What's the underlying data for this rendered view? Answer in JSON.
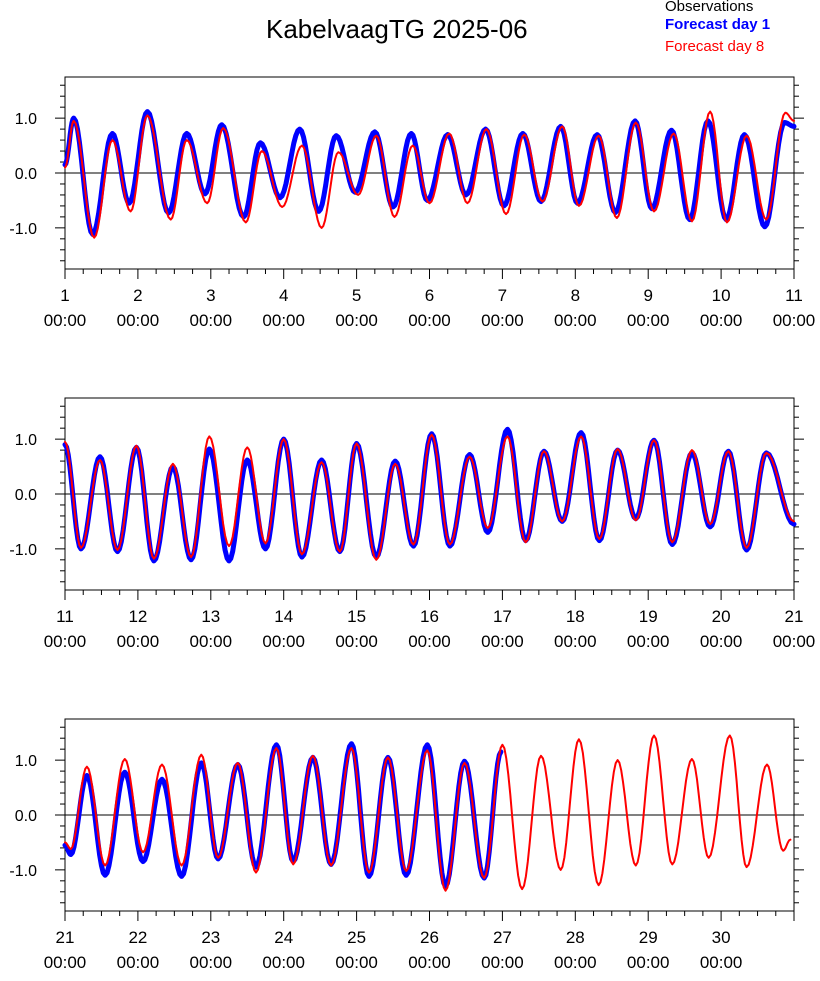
{
  "chart_data": {
    "type": "line",
    "title": "KabelvaagTG 2025-06",
    "legend": {
      "placement": "top-right",
      "entries": [
        {
          "name": "Observations",
          "color": "#000000"
        },
        {
          "name": "Forecast day 1",
          "color": "#0000ff"
        },
        {
          "name": "Forecast day 8",
          "color": "#ff0000"
        }
      ]
    },
    "y_tick_labels": [
      "1.0",
      "0.0",
      "-1.0"
    ],
    "ylim": [
      -1.75,
      1.75
    ],
    "grid": false,
    "panels": [
      {
        "x_start_day": 1,
        "x_end_day": 11,
        "x_tick_days": [
          "1",
          "2",
          "3",
          "4",
          "5",
          "6",
          "7",
          "8",
          "9",
          "10",
          "11"
        ],
        "x_tick_time": "00:00",
        "forecast_day1_extrema": [
          [
            0.0,
            0.15
          ],
          [
            0.12,
            1.0
          ],
          [
            0.38,
            -1.12
          ],
          [
            0.65,
            0.72
          ],
          [
            0.88,
            -0.55
          ],
          [
            1.13,
            1.12
          ],
          [
            1.42,
            -0.73
          ],
          [
            1.67,
            0.72
          ],
          [
            1.92,
            -0.38
          ],
          [
            2.15,
            0.88
          ],
          [
            2.45,
            -0.8
          ],
          [
            2.68,
            0.55
          ],
          [
            2.95,
            -0.45
          ],
          [
            3.22,
            0.8
          ],
          [
            3.48,
            -0.7
          ],
          [
            3.72,
            0.68
          ],
          [
            3.98,
            -0.35
          ],
          [
            4.25,
            0.75
          ],
          [
            4.5,
            -0.62
          ],
          [
            4.75,
            0.72
          ],
          [
            4.97,
            -0.5
          ],
          [
            5.25,
            0.7
          ],
          [
            5.5,
            -0.4
          ],
          [
            5.77,
            0.8
          ],
          [
            6.02,
            -0.6
          ],
          [
            6.28,
            0.72
          ],
          [
            6.53,
            -0.52
          ],
          [
            6.8,
            0.85
          ],
          [
            7.03,
            -0.55
          ],
          [
            7.3,
            0.7
          ],
          [
            7.55,
            -0.72
          ],
          [
            7.82,
            0.95
          ],
          [
            8.05,
            -0.65
          ],
          [
            8.32,
            0.78
          ],
          [
            8.57,
            -0.85
          ],
          [
            8.82,
            0.95
          ],
          [
            9.07,
            -0.85
          ],
          [
            9.32,
            0.7
          ],
          [
            9.6,
            -0.98
          ],
          [
            9.87,
            0.92
          ],
          [
            10.0,
            0.85
          ]
        ],
        "forecast_day8_extrema": [
          [
            0.0,
            0.1
          ],
          [
            0.12,
            0.95
          ],
          [
            0.4,
            -1.18
          ],
          [
            0.65,
            0.6
          ],
          [
            0.9,
            -0.7
          ],
          [
            1.13,
            1.05
          ],
          [
            1.45,
            -0.85
          ],
          [
            1.67,
            0.6
          ],
          [
            1.95,
            -0.55
          ],
          [
            2.17,
            0.82
          ],
          [
            2.48,
            -0.9
          ],
          [
            2.7,
            0.4
          ],
          [
            2.98,
            -0.62
          ],
          [
            3.25,
            0.5
          ],
          [
            3.52,
            -1.0
          ],
          [
            3.75,
            0.38
          ],
          [
            4.02,
            -0.4
          ],
          [
            4.27,
            0.68
          ],
          [
            4.52,
            -0.8
          ],
          [
            4.77,
            0.5
          ],
          [
            5.0,
            -0.55
          ],
          [
            5.27,
            0.72
          ],
          [
            5.52,
            -0.55
          ],
          [
            5.78,
            0.8
          ],
          [
            6.05,
            -0.75
          ],
          [
            6.3,
            0.7
          ],
          [
            6.55,
            -0.52
          ],
          [
            6.82,
            0.85
          ],
          [
            7.05,
            -0.6
          ],
          [
            7.32,
            0.68
          ],
          [
            7.57,
            -0.82
          ],
          [
            7.83,
            0.92
          ],
          [
            8.08,
            -0.7
          ],
          [
            8.35,
            0.72
          ],
          [
            8.6,
            -0.88
          ],
          [
            8.85,
            1.12
          ],
          [
            9.08,
            -0.9
          ],
          [
            9.35,
            0.68
          ],
          [
            9.62,
            -0.85
          ],
          [
            9.88,
            1.1
          ],
          [
            10.0,
            0.95
          ]
        ]
      },
      {
        "x_start_day": 11,
        "x_end_day": 21,
        "x_tick_days": [
          "11",
          "12",
          "13",
          "14",
          "15",
          "16",
          "17",
          "18",
          "19",
          "20",
          "21"
        ],
        "x_tick_time": "00:00",
        "forecast_day1_extrema": [
          [
            0.0,
            0.9
          ],
          [
            0.22,
            -1.0
          ],
          [
            0.48,
            0.68
          ],
          [
            0.72,
            -1.05
          ],
          [
            0.98,
            0.85
          ],
          [
            1.22,
            -1.22
          ],
          [
            1.48,
            0.5
          ],
          [
            1.73,
            -1.2
          ],
          [
            1.98,
            0.82
          ],
          [
            2.25,
            -1.22
          ],
          [
            2.5,
            0.62
          ],
          [
            2.75,
            -1.0
          ],
          [
            3.0,
            1.0
          ],
          [
            3.25,
            -1.15
          ],
          [
            3.52,
            0.62
          ],
          [
            3.77,
            -1.05
          ],
          [
            4.0,
            0.92
          ],
          [
            4.27,
            -1.15
          ],
          [
            4.53,
            0.6
          ],
          [
            4.78,
            -0.95
          ],
          [
            5.03,
            1.1
          ],
          [
            5.28,
            -0.95
          ],
          [
            5.55,
            0.72
          ],
          [
            5.8,
            -0.7
          ],
          [
            6.07,
            1.18
          ],
          [
            6.32,
            -0.85
          ],
          [
            6.57,
            0.78
          ],
          [
            6.82,
            -0.5
          ],
          [
            7.08,
            1.12
          ],
          [
            7.33,
            -0.85
          ],
          [
            7.58,
            0.8
          ],
          [
            7.83,
            -0.45
          ],
          [
            8.08,
            0.98
          ],
          [
            8.33,
            -0.92
          ],
          [
            8.6,
            0.75
          ],
          [
            8.85,
            -0.6
          ],
          [
            9.1,
            0.78
          ],
          [
            9.35,
            -1.02
          ],
          [
            9.62,
            0.75
          ],
          [
            10.0,
            -0.55
          ]
        ],
        "forecast_day8_extrema": [
          [
            0.0,
            0.95
          ],
          [
            0.22,
            -0.98
          ],
          [
            0.48,
            0.62
          ],
          [
            0.72,
            -1.02
          ],
          [
            0.98,
            0.88
          ],
          [
            1.22,
            -1.18
          ],
          [
            1.48,
            0.55
          ],
          [
            1.73,
            -1.15
          ],
          [
            1.98,
            1.05
          ],
          [
            2.25,
            -0.95
          ],
          [
            2.5,
            0.85
          ],
          [
            2.75,
            -0.9
          ],
          [
            3.0,
            1.0
          ],
          [
            3.25,
            -1.1
          ],
          [
            3.52,
            0.58
          ],
          [
            3.77,
            -1.05
          ],
          [
            4.0,
            0.92
          ],
          [
            4.27,
            -1.2
          ],
          [
            4.53,
            0.55
          ],
          [
            4.78,
            -0.92
          ],
          [
            5.03,
            1.08
          ],
          [
            5.28,
            -0.92
          ],
          [
            5.55,
            0.68
          ],
          [
            5.8,
            -0.62
          ],
          [
            6.07,
            1.05
          ],
          [
            6.32,
            -0.88
          ],
          [
            6.57,
            0.78
          ],
          [
            6.82,
            -0.5
          ],
          [
            7.08,
            1.05
          ],
          [
            7.33,
            -0.82
          ],
          [
            7.58,
            0.82
          ],
          [
            7.83,
            -0.48
          ],
          [
            8.08,
            0.98
          ],
          [
            8.33,
            -0.88
          ],
          [
            8.6,
            0.8
          ],
          [
            8.85,
            -0.55
          ],
          [
            9.1,
            0.78
          ],
          [
            9.35,
            -0.98
          ],
          [
            9.62,
            0.75
          ],
          [
            10.0,
            -0.5
          ]
        ]
      },
      {
        "x_start_day": 21,
        "x_end_day": 31,
        "x_tick_days": [
          "21",
          "22",
          "23",
          "24",
          "25",
          "26",
          "27",
          "28",
          "29",
          "30"
        ],
        "x_tick_time": "00:00",
        "forecast_day1_extrema": [
          [
            0.0,
            -0.55
          ],
          [
            0.08,
            -0.72
          ],
          [
            0.3,
            0.72
          ],
          [
            0.55,
            -1.1
          ],
          [
            0.82,
            0.78
          ],
          [
            1.07,
            -0.85
          ],
          [
            1.33,
            0.65
          ],
          [
            1.6,
            -1.12
          ],
          [
            1.87,
            0.95
          ],
          [
            2.1,
            -0.8
          ],
          [
            2.37,
            0.92
          ],
          [
            2.62,
            -0.95
          ],
          [
            2.9,
            1.28
          ],
          [
            3.13,
            -0.85
          ],
          [
            3.4,
            1.05
          ],
          [
            3.65,
            -0.9
          ],
          [
            3.93,
            1.3
          ],
          [
            4.17,
            -1.12
          ],
          [
            4.43,
            1.05
          ],
          [
            4.68,
            -1.1
          ],
          [
            4.97,
            1.28
          ],
          [
            5.22,
            -1.3
          ],
          [
            5.48,
            0.98
          ],
          [
            5.75,
            -1.15
          ],
          [
            5.98,
            1.15
          ]
        ],
        "forecast_day8_extrema": [
          [
            0.0,
            -0.5
          ],
          [
            0.08,
            -0.62
          ],
          [
            0.3,
            0.88
          ],
          [
            0.55,
            -0.92
          ],
          [
            0.82,
            1.02
          ],
          [
            1.07,
            -0.68
          ],
          [
            1.33,
            0.92
          ],
          [
            1.6,
            -0.92
          ],
          [
            1.87,
            1.1
          ],
          [
            2.1,
            -0.78
          ],
          [
            2.37,
            0.95
          ],
          [
            2.62,
            -1.05
          ],
          [
            2.9,
            1.22
          ],
          [
            3.13,
            -0.9
          ],
          [
            3.4,
            1.08
          ],
          [
            3.65,
            -0.92
          ],
          [
            3.93,
            1.22
          ],
          [
            4.17,
            -1.05
          ],
          [
            4.43,
            1.05
          ],
          [
            4.68,
            -1.02
          ],
          [
            4.97,
            1.18
          ],
          [
            5.22,
            -1.38
          ],
          [
            5.48,
            0.95
          ],
          [
            5.75,
            -1.15
          ],
          [
            6.0,
            1.28
          ],
          [
            6.27,
            -1.35
          ],
          [
            6.53,
            1.08
          ],
          [
            6.8,
            -1.0
          ],
          [
            7.05,
            1.38
          ],
          [
            7.32,
            -1.28
          ],
          [
            7.58,
            1.0
          ],
          [
            7.83,
            -0.92
          ],
          [
            8.08,
            1.45
          ],
          [
            8.33,
            -0.9
          ],
          [
            8.6,
            1.02
          ],
          [
            8.83,
            -0.78
          ],
          [
            9.12,
            1.45
          ],
          [
            9.35,
            -0.95
          ],
          [
            9.63,
            0.92
          ],
          [
            9.85,
            -0.65
          ],
          [
            9.95,
            -0.45
          ]
        ]
      }
    ]
  }
}
